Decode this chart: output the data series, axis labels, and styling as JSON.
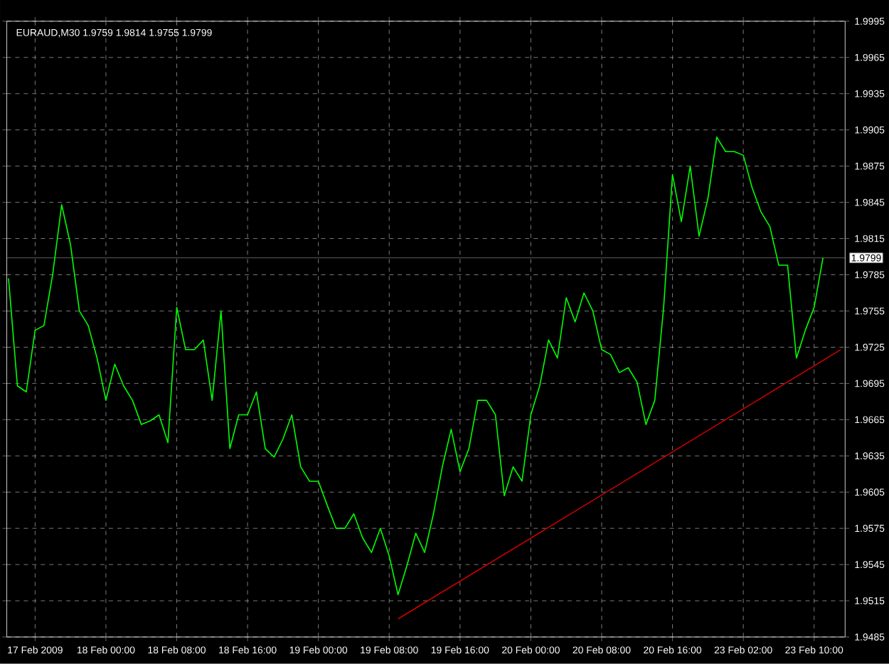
{
  "chart_data": {
    "type": "line",
    "title": "EURAUD,M30  1.9759 1.9814 1.9755 1.9799",
    "categories": [
      null,
      null,
      null,
      "17 Feb 2009",
      null,
      null,
      null,
      null,
      null,
      null,
      null,
      "18 Feb 00:00",
      null,
      null,
      null,
      null,
      null,
      null,
      null,
      "18 Feb 08:00",
      null,
      null,
      null,
      null,
      null,
      null,
      null,
      "18 Feb 16:00",
      null,
      null,
      null,
      null,
      null,
      null,
      null,
      "19 Feb 00:00",
      null,
      null,
      null,
      null,
      null,
      null,
      null,
      "19 Feb 08:00",
      null,
      null,
      null,
      null,
      null,
      null,
      null,
      "19 Feb 16:00",
      null,
      null,
      null,
      null,
      null,
      null,
      null,
      "20 Feb 00:00",
      null,
      null,
      null,
      null,
      null,
      null,
      null,
      "20 Feb 08:00",
      null,
      null,
      null,
      null,
      null,
      null,
      null,
      "20 Feb 16:00",
      null,
      null,
      null,
      null,
      null,
      null,
      null,
      "23 Feb 02:00",
      null,
      null,
      null,
      null,
      null,
      null,
      null,
      "23 Feb 10:00",
      null,
      null,
      null
    ],
    "ylim": [
      1.9485,
      1.9995
    ],
    "yticks": [
      1.9485,
      1.9515,
      1.9545,
      1.9575,
      1.9605,
      1.9635,
      1.9665,
      1.9695,
      1.9725,
      1.9755,
      1.9785,
      1.9815,
      1.9845,
      1.9875,
      1.9905,
      1.9935,
      1.9965,
      1.9995
    ],
    "grid": true,
    "line_style": "solid",
    "series": [
      {
        "color": "#00ff00",
        "values": [
          1.9782,
          1.9693,
          1.9688,
          1.9739,
          1.9743,
          1.9786,
          1.9843,
          1.981,
          1.9755,
          1.9743,
          1.9716,
          1.9681,
          1.9711,
          1.9693,
          1.9681,
          1.9661,
          1.9664,
          1.9669,
          1.9646,
          1.9758,
          1.9723,
          1.9723,
          1.9731,
          1.9681,
          1.9755,
          1.9641,
          1.9669,
          1.9669,
          1.9688,
          1.9641,
          1.9634,
          1.9649,
          1.9669,
          1.9626,
          1.9614,
          1.9614,
          1.9594,
          1.9575,
          1.9575,
          1.9587,
          1.9567,
          1.9555,
          1.9575,
          1.9552,
          1.952,
          1.9544,
          1.9571,
          1.9555,
          1.9587,
          1.9626,
          1.9657,
          1.9622,
          1.9641,
          1.9681,
          1.9681,
          1.9669,
          1.9602,
          1.9626,
          1.9614,
          1.9669,
          1.9693,
          1.9731,
          1.9716,
          1.9766,
          1.9746,
          1.977,
          1.9755,
          1.9723,
          1.9719,
          1.9704,
          1.9708,
          1.9696,
          1.9661,
          1.9681,
          1.9758,
          1.9868,
          1.9829,
          1.9875,
          1.9817,
          1.9848,
          1.9899,
          1.9887,
          1.9887,
          1.9884,
          1.9857,
          1.9837,
          1.9825,
          1.9793,
          1.9793,
          1.9716,
          1.9739,
          1.9758,
          1.9799,
          null,
          null
        ]
      },
      {
        "color": "#cc0000",
        "values": [
          null,
          null,
          null,
          null,
          null,
          null,
          null,
          null,
          null,
          null,
          null,
          null,
          null,
          null,
          null,
          null,
          null,
          null,
          null,
          null,
          null,
          null,
          null,
          null,
          null,
          null,
          null,
          null,
          null,
          null,
          null,
          null,
          null,
          null,
          null,
          null,
          null,
          null,
          null,
          null,
          null,
          null,
          null,
          null,
          1.95,
          null,
          null,
          null,
          null,
          null,
          null,
          null,
          null,
          null,
          null,
          null,
          null,
          null,
          null,
          null,
          null,
          null,
          null,
          null,
          null,
          null,
          null,
          null,
          null,
          null,
          null,
          null,
          null,
          null,
          null,
          null,
          null,
          null,
          null,
          null,
          null,
          null,
          null,
          null,
          null,
          null,
          null,
          null,
          null,
          null,
          null,
          null,
          null,
          null,
          1.9723
        ]
      }
    ],
    "ref_lines": [
      {
        "axis": "y",
        "value": 1.9799,
        "label": "1.9799",
        "color": "#808080"
      }
    ]
  }
}
